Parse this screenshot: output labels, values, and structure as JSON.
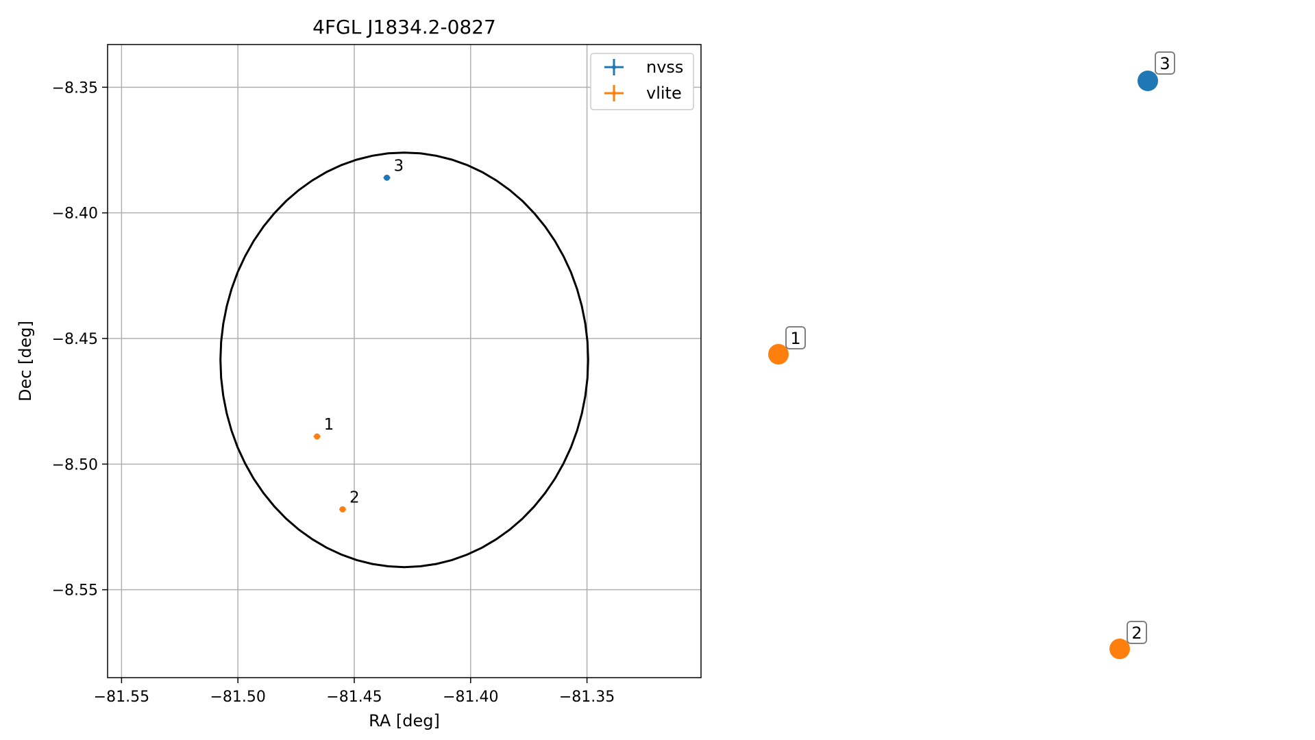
{
  "chart_data": {
    "type": "scatter",
    "title": "4FGL J1834.2-0827",
    "xlabel": "RA [deg]",
    "ylabel": "Dec [deg]",
    "xlim": [
      -81.556,
      -81.301
    ],
    "ylim": [
      -8.585,
      -8.333
    ],
    "x_ticks": [
      -81.55,
      -81.5,
      -81.45,
      -81.4,
      -81.35
    ],
    "x_tick_labels": [
      "−81.55",
      "−81.50",
      "−81.45",
      "−81.40",
      "−81.35"
    ],
    "y_ticks": [
      -8.35,
      -8.4,
      -8.45,
      -8.5,
      -8.55
    ],
    "y_tick_labels": [
      "−8.35",
      "−8.40",
      "−8.45",
      "−8.50",
      "−8.55"
    ],
    "grid": true,
    "legend_position": "top-right",
    "series": [
      {
        "name": "nvss",
        "color": "#1f77b4",
        "points": [
          {
            "label": "3",
            "x": -81.436,
            "y": -8.386
          }
        ]
      },
      {
        "name": "vlite",
        "color": "#ff7f0e",
        "points": [
          {
            "label": "1",
            "x": -81.466,
            "y": -8.489
          },
          {
            "label": "2",
            "x": -81.455,
            "y": -8.518
          }
        ]
      }
    ],
    "ellipse": {
      "center_x": -81.4285,
      "center_y": -8.4585,
      "semi_axis_x": 0.079,
      "semi_axis_y": 0.0825,
      "color": "#000000"
    },
    "side_markers": [
      {
        "label": "1",
        "color": "#ff7f0e"
      },
      {
        "label": "2",
        "color": "#ff7f0e"
      },
      {
        "label": "3",
        "color": "#1f77b4"
      }
    ]
  }
}
